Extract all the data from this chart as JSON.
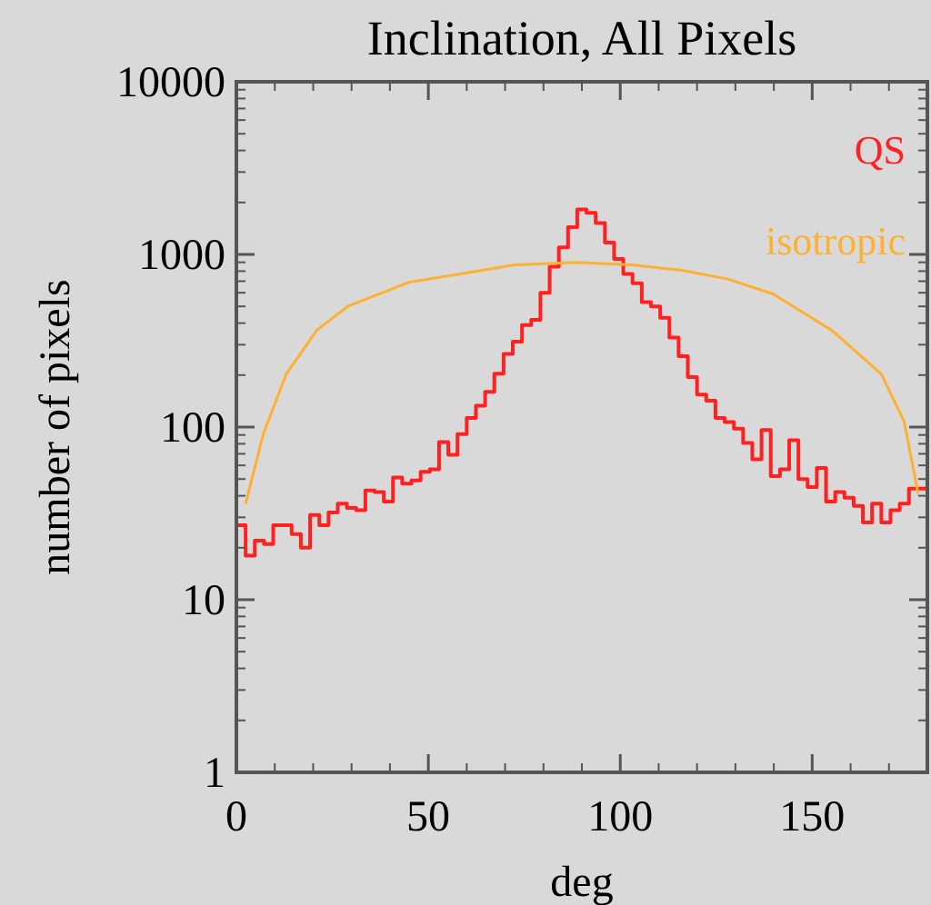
{
  "chart_data": {
    "type": "histogram",
    "title": "Inclination, All Pixels",
    "xlabel": "deg",
    "ylabel": "number of pixels",
    "bins": [
      0,
      2.4,
      4.8,
      7.2,
      9.6,
      12,
      14.4,
      16.8,
      19.2,
      21.6,
      24,
      26.4,
      28.8,
      31.2,
      33.6,
      36,
      38.4,
      40.8,
      43.2,
      45.6,
      48,
      50.4,
      52.8,
      55.2,
      57.6,
      60,
      62.4,
      64.8,
      67.2,
      69.6,
      72,
      74.4,
      76.8,
      79.2,
      81.6,
      84,
      86.4,
      88.8,
      91.2,
      93.6,
      96,
      98.4,
      100.8,
      103.2,
      105.6,
      108,
      110.4,
      112.8,
      115.2,
      117.6,
      120,
      122.4,
      124.8,
      127.2,
      129.6,
      132,
      134.4,
      136.8,
      139.2,
      141.6,
      144,
      146.4,
      148.8,
      151.2,
      153.6,
      156,
      158.4,
      160.8,
      163.2,
      165.6,
      168,
      170.4,
      172.8,
      175.2,
      177.6,
      180
    ],
    "series": [
      {
        "name": "QS",
        "color": "#ff2020",
        "values": [
          27,
          18,
          22,
          21,
          27,
          27,
          24,
          20,
          31,
          27,
          32,
          36,
          34,
          33,
          43,
          42,
          37,
          51,
          47,
          49,
          55,
          57,
          82,
          69,
          91,
          113,
          133,
          160,
          204,
          265,
          312,
          390,
          418,
          600,
          850,
          1100,
          1440,
          1820,
          1740,
          1520,
          1170,
          940,
          770,
          680,
          530,
          500,
          430,
          330,
          257,
          195,
          154,
          142,
          113,
          107,
          98,
          81,
          65,
          96,
          52,
          57,
          84,
          50,
          45,
          58,
          37,
          42,
          39,
          35,
          28,
          36,
          28,
          33,
          36,
          44,
          44
        ]
      },
      {
        "name": "isotropic",
        "type": "line",
        "color": "#ffb030",
        "x": [
          2.4,
          7,
          13,
          21,
          29,
          45,
          59,
          72.5,
          88.6,
          103,
          116,
          128,
          139.8,
          155,
          168,
          174,
          177.6
        ],
        "values": [
          36,
          91,
          203,
          365,
          500,
          690,
          775,
          870,
          900,
          870,
          810,
          720,
          590,
          365,
          203,
          107,
          41
        ]
      }
    ],
    "xlim": [
      0,
      180
    ],
    "xticks": [
      0,
      50,
      100,
      150
    ],
    "ylim": [
      1,
      10000
    ],
    "yticks": [
      1,
      10,
      100,
      1000,
      10000
    ],
    "log": "y",
    "legend": "top right"
  }
}
